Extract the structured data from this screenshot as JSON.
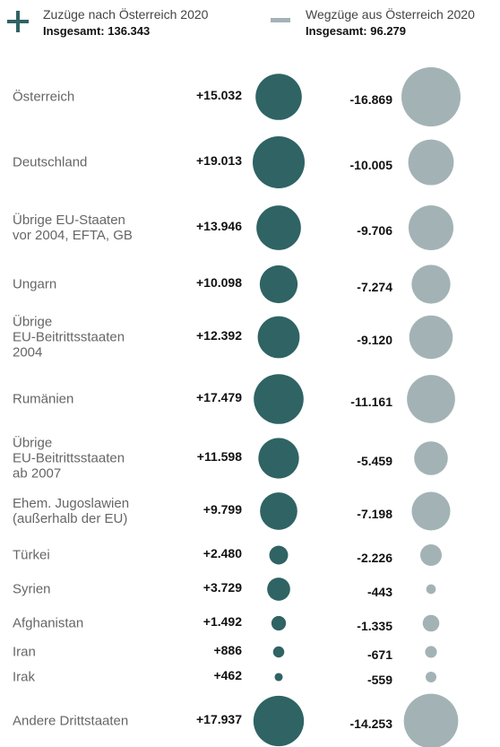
{
  "chart_data": {
    "type": "bubble",
    "categories": [
      "Österreich",
      "Deutschland",
      "Übrige EU-Staaten\nvor 2004, EFTA, GB",
      "Ungarn",
      "Übrige\nEU-Beitrittsstaaten\n2004",
      "Rumänien",
      "Übrige\nEU-Beitrittsstaaten\nab 2007",
      "Ehem. Jugoslawien\n(außerhalb der EU)",
      "Türkei",
      "Syrien",
      "Afghanistan",
      "Iran",
      "Irak",
      "Andere Drittstaaten"
    ],
    "series": [
      {
        "name": "Zuzüge nach Österreich 2020",
        "total_label": "Insgesamt: 136.343",
        "color": "#2f6364",
        "values": [
          15032,
          19013,
          13946,
          10098,
          12392,
          17479,
          11598,
          9799,
          2480,
          3729,
          1492,
          886,
          462,
          17937
        ],
        "value_labels": [
          "+15.032",
          "+19.013",
          "+13.946",
          "+10.098",
          "+12.392",
          "+17.479",
          "+11.598",
          "+9.799",
          "+2.480",
          "+3.729",
          "+1.492",
          "+886",
          "+462",
          "+17.937"
        ]
      },
      {
        "name": "Wegzüge aus Österreich 2020",
        "total_label": "Insgesamt: 96.279",
        "color": "#a3b3b5",
        "values": [
          -16869,
          -10005,
          -9706,
          -7274,
          -9120,
          -11161,
          -5459,
          -7198,
          -2226,
          -443,
          -1335,
          -671,
          -559,
          -14253
        ],
        "value_labels": [
          "-16.869",
          "-10.005",
          "-9.706",
          "-7.274",
          "-9.120",
          "-11.161",
          "-5.459",
          "-7.198",
          "-2.226",
          "-443",
          "-1.335",
          "-671",
          "-559",
          "-14.253"
        ]
      }
    ]
  }
}
